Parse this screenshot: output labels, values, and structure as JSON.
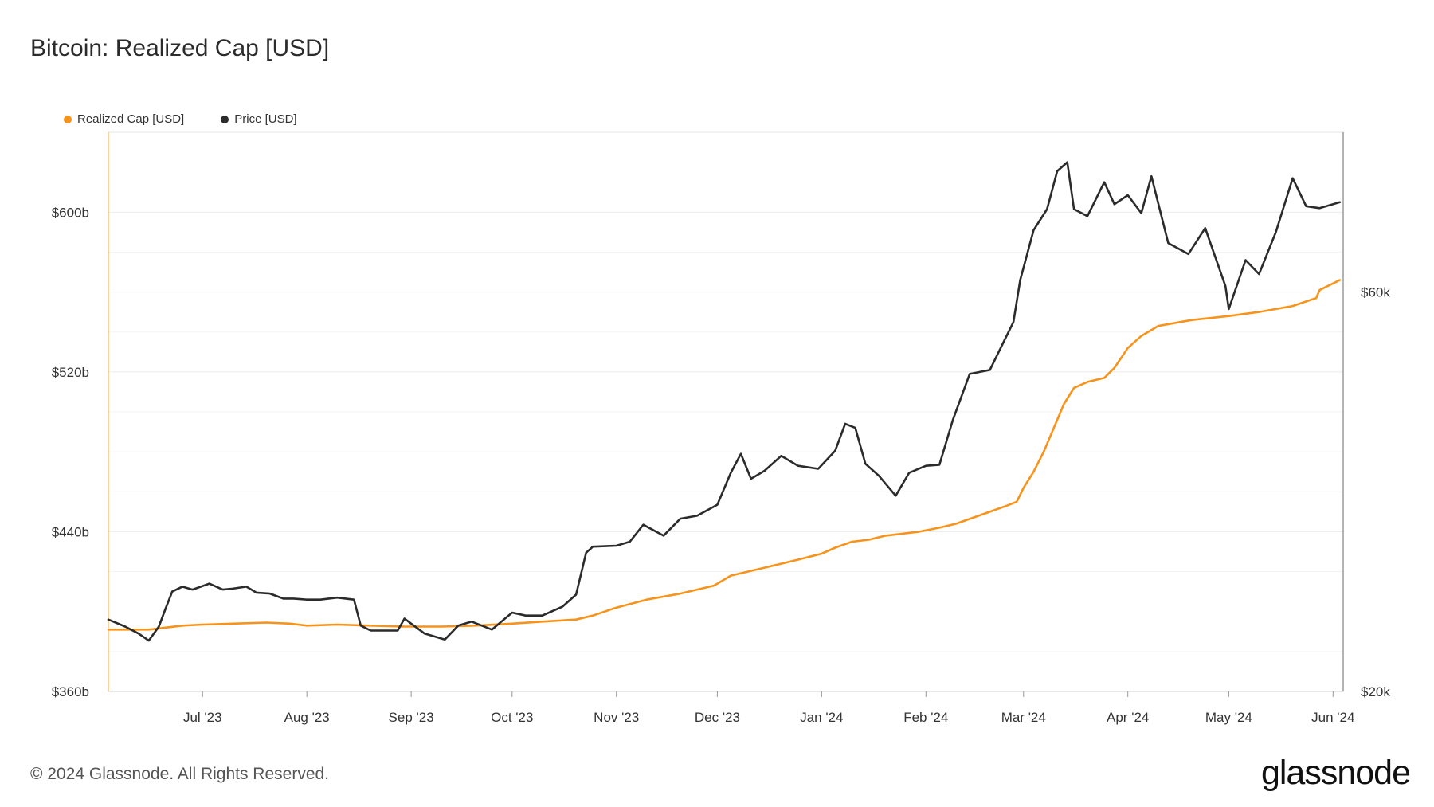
{
  "title": "Bitcoin: Realized Cap [USD]",
  "footer": "© 2024 Glassnode. All Rights Reserved.",
  "logo": "glassnode",
  "colors": {
    "realized_cap": "#F7931A",
    "price": "#2b2b2b",
    "grid": "#ececec",
    "axis": "#d0d0d0"
  },
  "legend": [
    {
      "label": "Realized Cap [USD]",
      "color": "#F7931A"
    },
    {
      "label": "Price [USD]",
      "color": "#2b2b2b"
    }
  ],
  "chart_data": {
    "type": "line",
    "x_range": [
      "2023-06-03",
      "2024-06-04"
    ],
    "x_ticks": [
      {
        "date": "2023-07-01",
        "label": "Jul '23"
      },
      {
        "date": "2023-08-01",
        "label": "Aug '23"
      },
      {
        "date": "2023-09-01",
        "label": "Sep '23"
      },
      {
        "date": "2023-10-01",
        "label": "Oct '23"
      },
      {
        "date": "2023-11-01",
        "label": "Nov '23"
      },
      {
        "date": "2023-12-01",
        "label": "Dec '23"
      },
      {
        "date": "2024-01-01",
        "label": "Jan '24"
      },
      {
        "date": "2024-02-01",
        "label": "Feb '24"
      },
      {
        "date": "2024-03-01",
        "label": "Mar '24"
      },
      {
        "date": "2024-04-01",
        "label": "Apr '24"
      },
      {
        "date": "2024-05-01",
        "label": "May '24"
      },
      {
        "date": "2024-06-01",
        "label": "Jun '24"
      }
    ],
    "y_left": {
      "ylim": [
        360,
        640
      ],
      "ticks": [
        360,
        440,
        520,
        600
      ],
      "labels": [
        "$360b",
        "$440b",
        "$520b",
        "$600b"
      ]
    },
    "y_right": {
      "ylim": [
        20000,
        76000
      ],
      "ticks": [
        20000,
        60000
      ],
      "labels": [
        "$20k",
        "$60k"
      ]
    },
    "grid": true,
    "legend_position": "top-left",
    "series": [
      {
        "name": "Realized Cap [USD]",
        "axis": "left",
        "color": "#F7931A",
        "x": [
          "2023-06-03",
          "2023-06-15",
          "2023-06-25",
          "2023-07-01",
          "2023-07-10",
          "2023-07-20",
          "2023-07-27",
          "2023-08-01",
          "2023-08-10",
          "2023-08-20",
          "2023-08-30",
          "2023-09-10",
          "2023-09-20",
          "2023-10-01",
          "2023-10-10",
          "2023-10-20",
          "2023-10-25",
          "2023-11-01",
          "2023-11-10",
          "2023-11-20",
          "2023-11-30",
          "2023-12-05",
          "2023-12-15",
          "2023-12-25",
          "2024-01-01",
          "2024-01-05",
          "2024-01-10",
          "2024-01-15",
          "2024-01-20",
          "2024-01-30",
          "2024-02-05",
          "2024-02-10",
          "2024-02-15",
          "2024-02-20",
          "2024-02-25",
          "2024-02-28",
          "2024-03-01",
          "2024-03-04",
          "2024-03-07",
          "2024-03-10",
          "2024-03-13",
          "2024-03-16",
          "2024-03-20",
          "2024-03-25",
          "2024-03-28",
          "2024-04-01",
          "2024-04-05",
          "2024-04-10",
          "2024-04-20",
          "2024-05-01",
          "2024-05-10",
          "2024-05-15",
          "2024-05-20",
          "2024-05-27",
          "2024-05-28",
          "2024-06-03"
        ],
        "values": [
          391,
          391,
          393,
          393.5,
          394,
          394.5,
          394,
          393,
          393.5,
          393,
          392.5,
          392.5,
          393,
          394,
          395,
          396,
          398,
          402,
          406,
          409,
          413,
          418,
          422,
          426,
          429,
          432,
          435,
          436,
          438,
          440,
          442,
          444,
          447,
          450,
          453,
          455,
          462,
          470,
          480,
          492,
          504,
          512,
          515,
          517,
          522,
          532,
          538,
          543,
          546,
          548,
          550,
          551.5,
          553,
          557,
          561,
          566
        ]
      },
      {
        "name": "Price [USD]",
        "axis": "right",
        "color": "#2b2b2b",
        "x": [
          "2023-06-03",
          "2023-06-08",
          "2023-06-12",
          "2023-06-15",
          "2023-06-18",
          "2023-06-20",
          "2023-06-22",
          "2023-06-25",
          "2023-06-28",
          "2023-07-03",
          "2023-07-07",
          "2023-07-10",
          "2023-07-14",
          "2023-07-17",
          "2023-07-21",
          "2023-07-25",
          "2023-07-28",
          "2023-08-01",
          "2023-08-05",
          "2023-08-10",
          "2023-08-15",
          "2023-08-17",
          "2023-08-20",
          "2023-08-28",
          "2023-08-30",
          "2023-09-05",
          "2023-09-11",
          "2023-09-15",
          "2023-09-19",
          "2023-09-25",
          "2023-10-01",
          "2023-10-05",
          "2023-10-10",
          "2023-10-16",
          "2023-10-20",
          "2023-10-23",
          "2023-10-25",
          "2023-11-01",
          "2023-11-05",
          "2023-11-09",
          "2023-11-15",
          "2023-11-20",
          "2023-11-25",
          "2023-12-01",
          "2023-12-05",
          "2023-12-08",
          "2023-12-11",
          "2023-12-15",
          "2023-12-20",
          "2023-12-25",
          "2023-12-31",
          "2024-01-05",
          "2024-01-08",
          "2024-01-11",
          "2024-01-14",
          "2024-01-18",
          "2024-01-23",
          "2024-01-27",
          "2024-02-01",
          "2024-02-05",
          "2024-02-09",
          "2024-02-14",
          "2024-02-20",
          "2024-02-27",
          "2024-02-29",
          "2024-03-04",
          "2024-03-08",
          "2024-03-11",
          "2024-03-14",
          "2024-03-16",
          "2024-03-20",
          "2024-03-25",
          "2024-03-28",
          "2024-04-01",
          "2024-04-05",
          "2024-04-08",
          "2024-04-13",
          "2024-04-19",
          "2024-04-24",
          "2024-04-30",
          "2024-05-01",
          "2024-05-06",
          "2024-05-10",
          "2024-05-15",
          "2024-05-20",
          "2024-05-24",
          "2024-05-28",
          "2024-06-03"
        ],
        "values": [
          27200,
          26500,
          25800,
          25100,
          26500,
          28300,
          30000,
          30500,
          30200,
          30800,
          30200,
          30300,
          30500,
          29900,
          29800,
          29300,
          29300,
          29200,
          29200,
          29400,
          29200,
          26600,
          26100,
          26100,
          27300,
          25800,
          25200,
          26600,
          27000,
          26200,
          27900,
          27600,
          27600,
          28500,
          29700,
          33900,
          34500,
          34600,
          35000,
          36700,
          35600,
          37300,
          37600,
          38700,
          41900,
          43800,
          41300,
          42100,
          43600,
          42600,
          42300,
          44100,
          46800,
          46400,
          42800,
          41600,
          39600,
          41900,
          42600,
          42700,
          47200,
          51800,
          52200,
          57000,
          61200,
          66200,
          68300,
          72100,
          73000,
          68300,
          67600,
          71000,
          68800,
          69700,
          67900,
          71600,
          64900,
          63800,
          66400,
          60600,
          58300,
          63200,
          61800,
          66000,
          71400,
          68600,
          68400,
          69000
        ]
      }
    ]
  }
}
